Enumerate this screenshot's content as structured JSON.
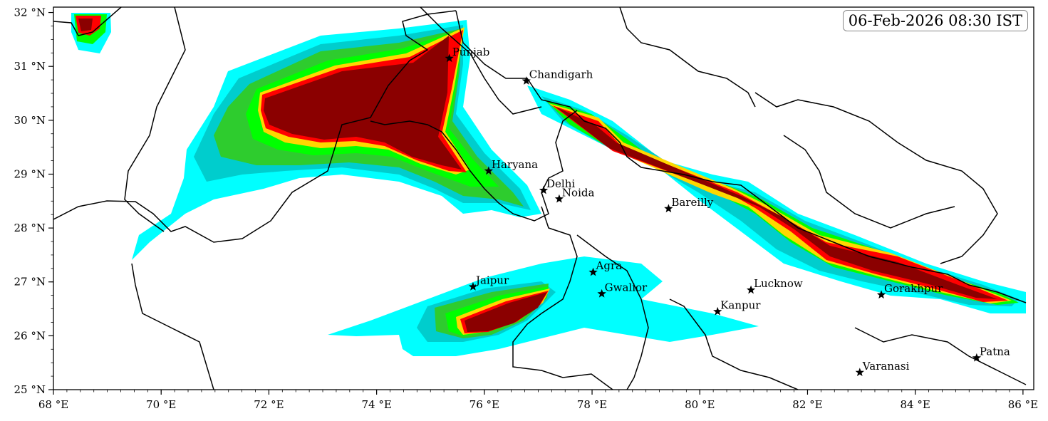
{
  "map": {
    "timestamp": "06-Feb-2026 08:30 IST",
    "lon_range": [
      68,
      86.2
    ],
    "lat_range": [
      25,
      32.1
    ],
    "x_ticks": [
      {
        "value": 68,
        "label": "68 °E"
      },
      {
        "value": 70,
        "label": "70 °E"
      },
      {
        "value": 72,
        "label": "72 °E"
      },
      {
        "value": 74,
        "label": "74 °E"
      },
      {
        "value": 76,
        "label": "76 °E"
      },
      {
        "value": 78,
        "label": "78 °E"
      },
      {
        "value": 80,
        "label": "80 °E"
      },
      {
        "value": 82,
        "label": "82 °E"
      },
      {
        "value": 84,
        "label": "84 °E"
      },
      {
        "value": 86,
        "label": "86 °E"
      }
    ],
    "y_ticks": [
      {
        "value": 25,
        "label": "25 °N"
      },
      {
        "value": 26,
        "label": "26 °N"
      },
      {
        "value": 27,
        "label": "27 °N"
      },
      {
        "value": 28,
        "label": "28 °N"
      },
      {
        "value": 29,
        "label": "29 °N"
      },
      {
        "value": 30,
        "label": "30 °N"
      },
      {
        "value": 31,
        "label": "31 °N"
      },
      {
        "value": 32,
        "label": "32 °N"
      }
    ],
    "cities": [
      {
        "name": "Punjab",
        "lon": 75.35,
        "lat": 31.15
      },
      {
        "name": "Chandigarh",
        "lon": 76.78,
        "lat": 30.73
      },
      {
        "name": "Haryana",
        "lon": 76.08,
        "lat": 29.06
      },
      {
        "name": "Delhi",
        "lon": 77.1,
        "lat": 28.7
      },
      {
        "name": "Noida",
        "lon": 77.39,
        "lat": 28.54
      },
      {
        "name": "Bareilly",
        "lon": 79.42,
        "lat": 28.36
      },
      {
        "name": "Jaipur",
        "lon": 75.79,
        "lat": 26.91
      },
      {
        "name": "Agra",
        "lon": 78.02,
        "lat": 27.18
      },
      {
        "name": "Gwalior",
        "lon": 78.18,
        "lat": 26.78
      },
      {
        "name": "Lucknow",
        "lon": 80.95,
        "lat": 26.85
      },
      {
        "name": "Kanpur",
        "lon": 80.33,
        "lat": 26.45
      },
      {
        "name": "Gorakhpur",
        "lon": 83.37,
        "lat": 26.76
      },
      {
        "name": "Varanasi",
        "lon": 82.97,
        "lat": 25.32
      },
      {
        "name": "Patna",
        "lon": 85.14,
        "lat": 25.59
      }
    ],
    "colors": {
      "level1": "#00ffff",
      "level2": "#00cdcd",
      "level3": "#2ecc2e",
      "level4": "#00ff00",
      "level5": "#ffd700",
      "level6": "#ff0000",
      "level7": "#8b0000",
      "boundary": "#000000"
    }
  }
}
